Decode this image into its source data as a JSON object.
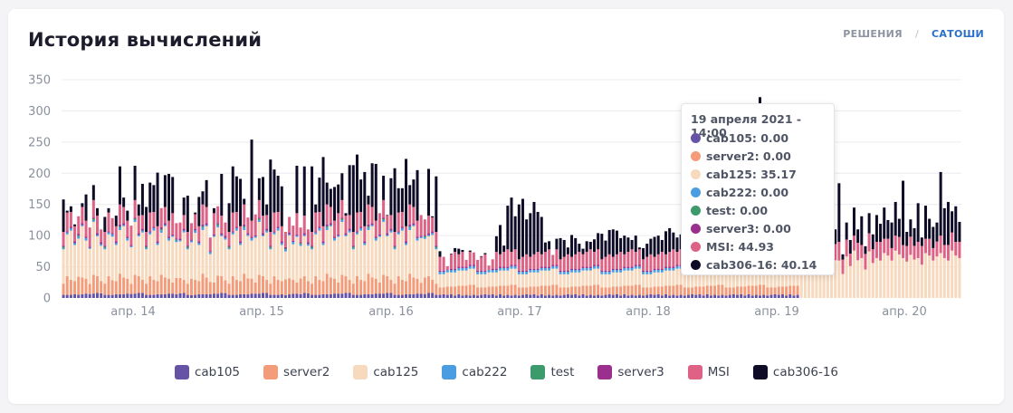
{
  "title": "История вычислений",
  "toggle": {
    "solutions": "РЕШЕНИЯ",
    "separator": "/",
    "satoshi": "САТОШИ",
    "active": "САТОШИ"
  },
  "colors": {
    "cab105": "#6653a6",
    "server2": "#f49c79",
    "cab125": "#f7d9bd",
    "cab222": "#4a9de0",
    "test": "#3c9a6b",
    "server3": "#9b2f8e",
    "MSI": "#dd6285",
    "cab306-16": "#0e0b26"
  },
  "chart_data": {
    "type": "bar",
    "stacked": true,
    "ylim": [
      0,
      350
    ],
    "yticks": [
      "0",
      "50",
      "100",
      "150",
      "200",
      "250",
      "300",
      "350"
    ],
    "xticks": [
      "апр. 14",
      "апр. 15",
      "апр. 16",
      "апр. 17",
      "апр. 18",
      "апр. 19",
      "апр. 20"
    ],
    "grid": true,
    "legend_position": "bottom",
    "series_names": [
      "cab105",
      "server2",
      "cab125",
      "cab222",
      "test",
      "server3",
      "MSI",
      "cab306-16"
    ],
    "totals": [
      158,
      140,
      147,
      118,
      131,
      152,
      166,
      113,
      181,
      144,
      110,
      130,
      144,
      128,
      132,
      211,
      161,
      140,
      116,
      212,
      150,
      183,
      146,
      185,
      181,
      201,
      144,
      197,
      199,
      194,
      120,
      121,
      161,
      164,
      120,
      137,
      162,
      171,
      189,
      97,
      144,
      147,
      199,
      121,
      152,
      211,
      195,
      191,
      159,
      129,
      254,
      134,
      192,
      194,
      150,
      222,
      206,
      196,
      179,
      106,
      130,
      116,
      212,
      113,
      211,
      110,
      211,
      150,
      193,
      226,
      185,
      175,
      178,
      182,
      200,
      136,
      213,
      213,
      230,
      190,
      202,
      164,
      216,
      215,
      136,
      196,
      133,
      192,
      208,
      176,
      176,
      223,
      181,
      190,
      205,
      133,
      126,
      207,
      131,
      195,
      75,
      66,
      51,
      71,
      80,
      79,
      77,
      61,
      76,
      73,
      61,
      67,
      72,
      52,
      62,
      99,
      117,
      84,
      148,
      161,
      131,
      150,
      159,
      126,
      136,
      154,
      138,
      130,
      89,
      91,
      69,
      95,
      96,
      93,
      81,
      101,
      96,
      87,
      79,
      91,
      90,
      94,
      104,
      103,
      92,
      109,
      110,
      108,
      96,
      100,
      97,
      93,
      100,
      81,
      80,
      87,
      95,
      98,
      100,
      93,
      107,
      112,
      105,
      97,
      102,
      110,
      93,
      102,
      108,
      105,
      113,
      120,
      115,
      106,
      109,
      102,
      110,
      100,
      112,
      114,
      118,
      114,
      111,
      121,
      118,
      322,
      130,
      130,
      117,
      138,
      109,
      124,
      128,
      140,
      146,
      152,
      136,
      215,
      301,
      199,
      180,
      172,
      238,
      136,
      87,
      110,
      184,
      70,
      121,
      93,
      145,
      110,
      131,
      83,
      136,
      102,
      133,
      119,
      145,
      125,
      121,
      154,
      127,
      188,
      106,
      126,
      112,
      152,
      97,
      148,
      127,
      114,
      121,
      202,
      144,
      154,
      139,
      147,
      122
    ]
  },
  "tooltip": {
    "title": "19 апреля 2021 - 14:00",
    "rows": [
      {
        "label": "cab105: 0.00",
        "color": "#6653a6"
      },
      {
        "label": "server2: 0.00",
        "color": "#f49c79"
      },
      {
        "label": "cab125: 35.17",
        "color": "#f7d9bd"
      },
      {
        "label": "cab222: 0.00",
        "color": "#4a9de0"
      },
      {
        "label": "test: 0.00",
        "color": "#3c9a6b"
      },
      {
        "label": "server3: 0.00",
        "color": "#9b2f8e"
      },
      {
        "label": "MSI: 44.93",
        "color": "#dd6285"
      },
      {
        "label": "cab306-16: 40.14",
        "color": "#0e0b26"
      }
    ]
  },
  "legend": [
    {
      "label": "cab105",
      "color": "#6653a6"
    },
    {
      "label": "server2",
      "color": "#f49c79"
    },
    {
      "label": "cab125",
      "color": "#f7d9bd"
    },
    {
      "label": "cab222",
      "color": "#4a9de0"
    },
    {
      "label": "test",
      "color": "#3c9a6b"
    },
    {
      "label": "server3",
      "color": "#9b2f8e"
    },
    {
      "label": "MSI",
      "color": "#dd6285"
    },
    {
      "label": "cab306-16",
      "color": "#0e0b26"
    }
  ]
}
